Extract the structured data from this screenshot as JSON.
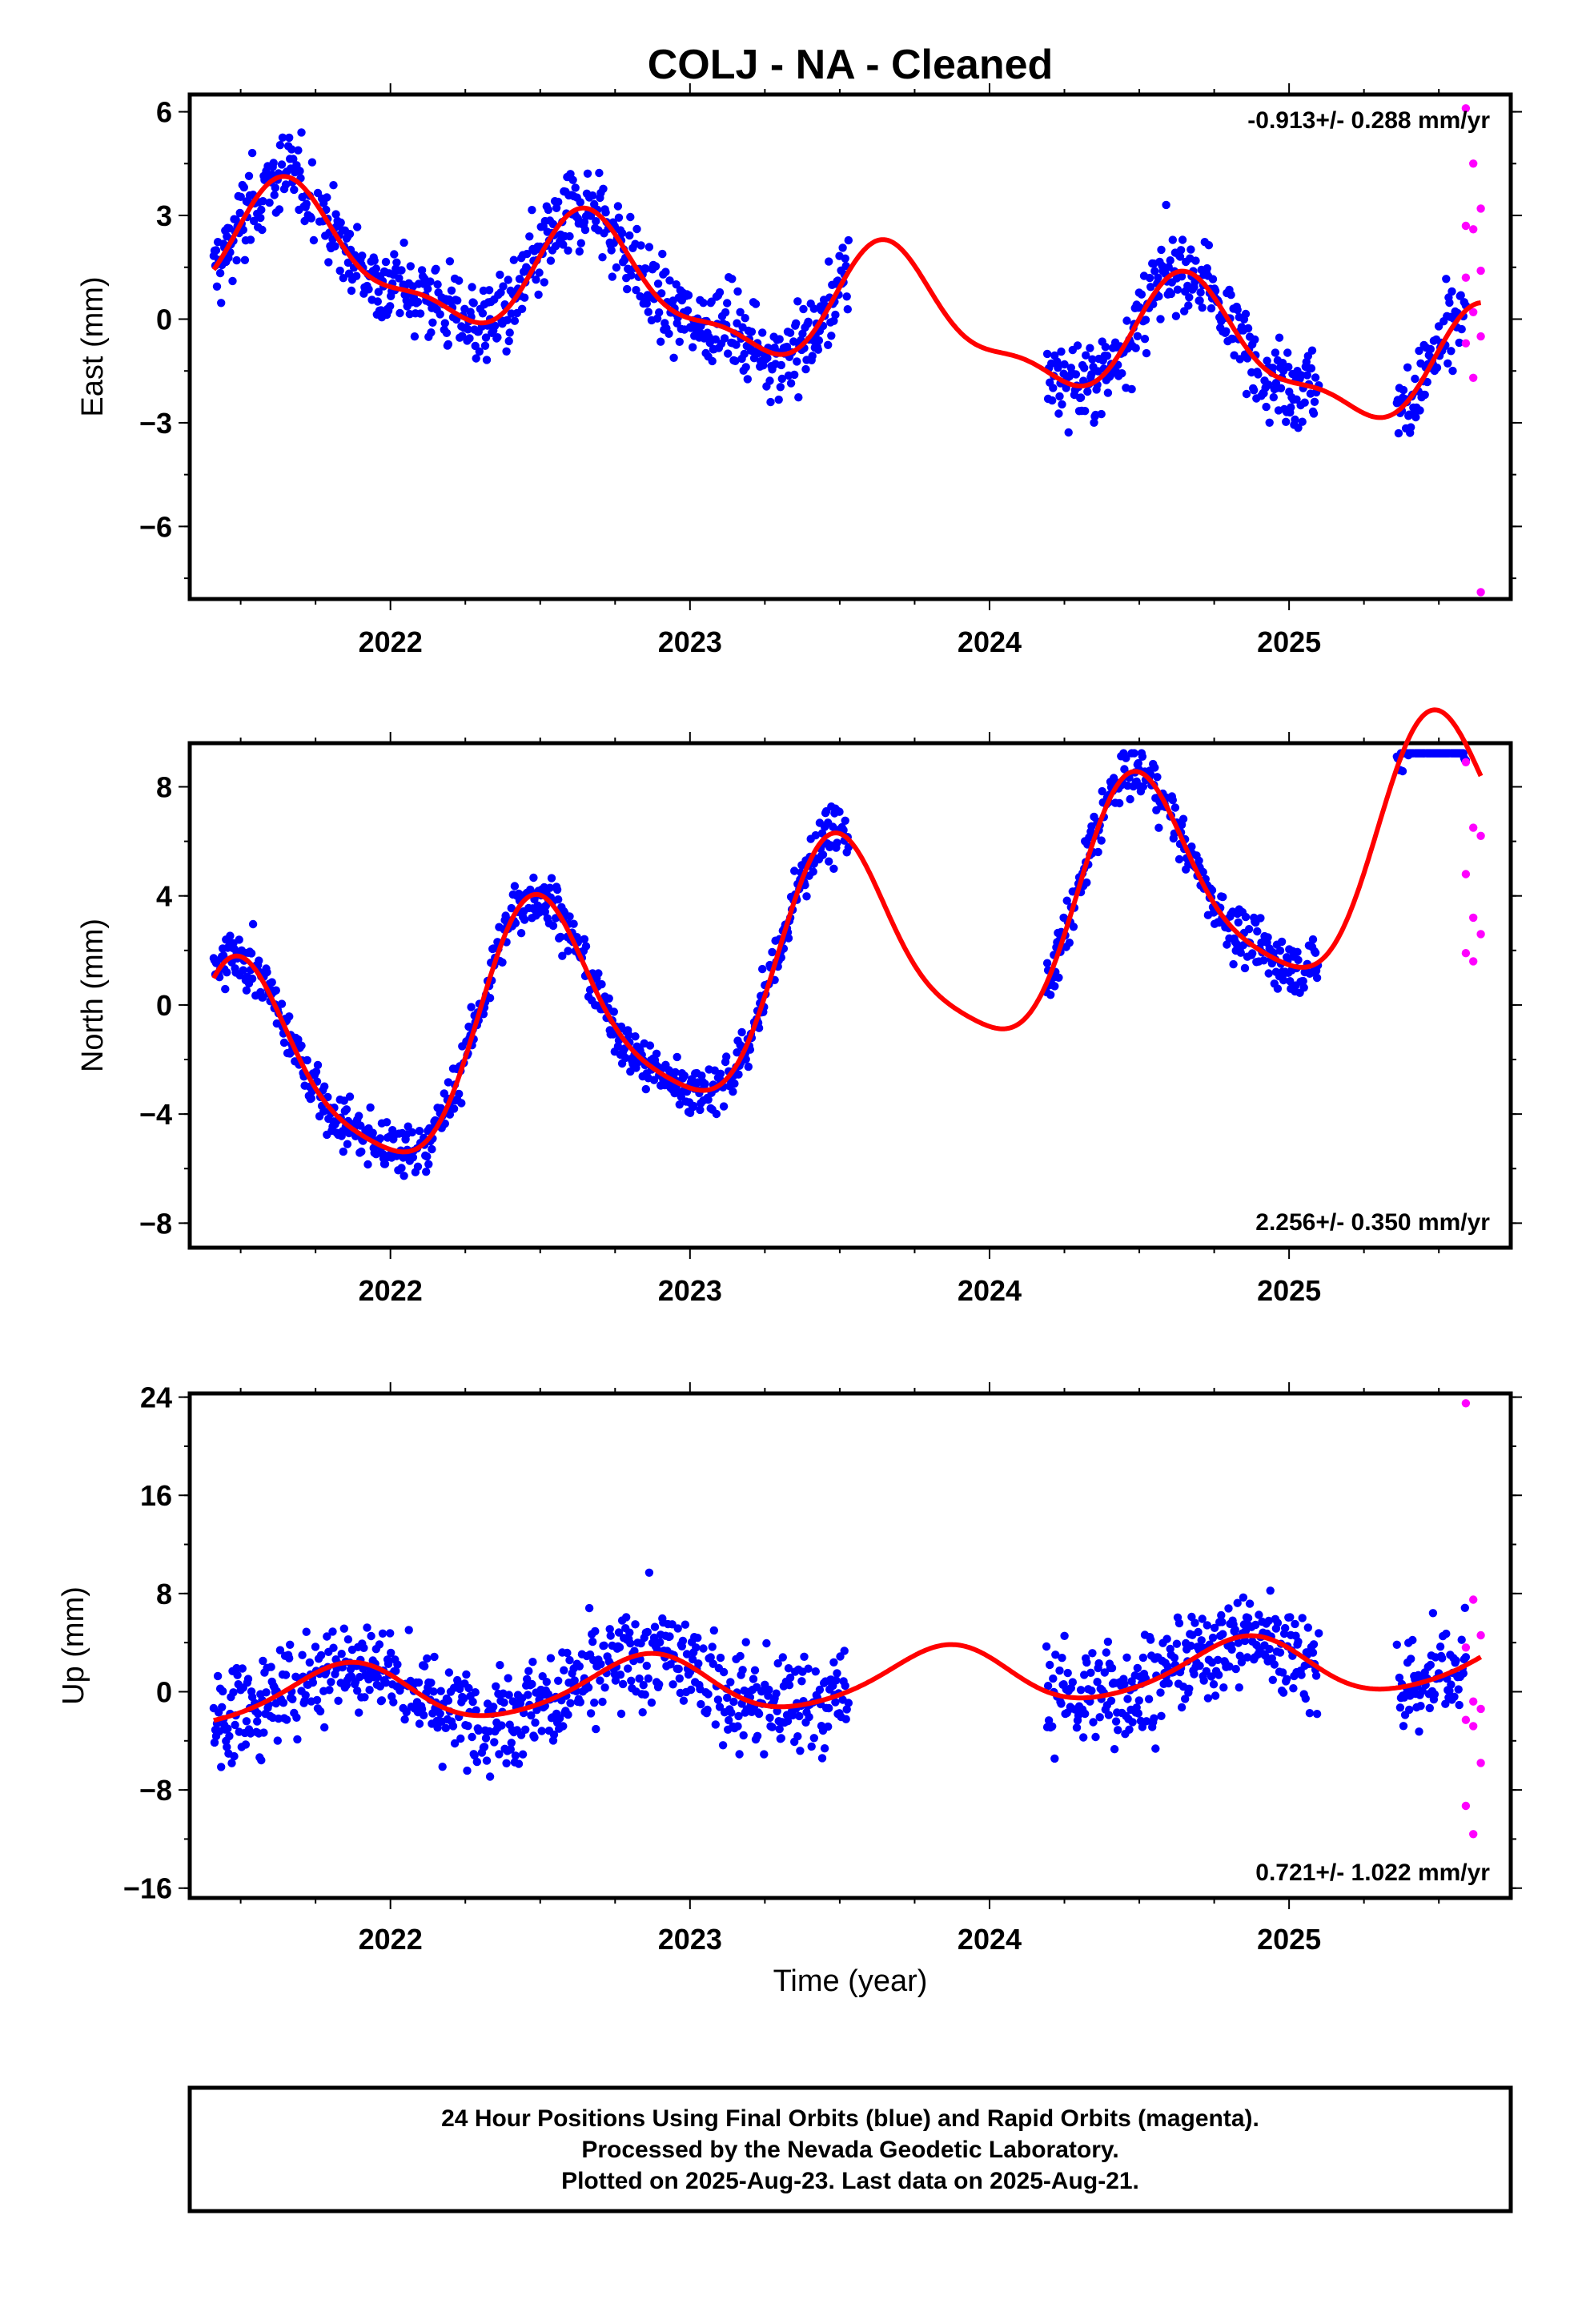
{
  "chart_data": {
    "title": "COLJ  - NA - Cleaned",
    "type": "scatter",
    "x_label": "Time (year)",
    "x_ticks": [
      "2022",
      "2023",
      "2024",
      "2025"
    ],
    "xlim": [
      2021.33,
      2025.74
    ],
    "colors": {
      "final": "#0000ff",
      "rapid": "#ff00ff",
      "fit": "#ff0000"
    },
    "panels": [
      {
        "ylabel": "East (mm)",
        "ylim": [
          -8.1,
          6.5
        ],
        "yticks": [
          "6",
          "3",
          "0",
          "-3",
          "-6"
        ],
        "rate_text": "-0.913+/- 0.288 mm/yr",
        "rate_position": "top-right",
        "trend": {
          "value_at_2021.4": 2.2,
          "rate": -0.913,
          "annual_amp": 1.6,
          "annual_peak": 2021.68,
          "semi_amp": 0.6,
          "semi_peak": 2021.63
        },
        "noise": 1.05,
        "rapid_values": [
          6.1,
          4.5,
          3.2,
          2.7,
          2.6,
          1.4,
          1.2,
          0.2,
          -0.5,
          -0.7,
          -1.7,
          -7.9
        ]
      },
      {
        "ylabel": "North (mm)",
        "ylim": [
          -8.9,
          9.6
        ],
        "yticks": [
          "8",
          "4",
          "0",
          "-4",
          "-8"
        ],
        "rate_text": "2.256+/- 0.350 mm/yr",
        "rate_position": "bottom-right",
        "trend": {
          "value_at_2021.4": -3.2,
          "rate": 2.256,
          "annual_amp": 4.1,
          "annual_peak": 2021.5,
          "semi_amp": 0.8,
          "semi_peak": 2021.45
        },
        "noise": 0.85,
        "rapid_values": [
          8.9,
          6.5,
          6.2,
          4.8,
          3.2,
          2.6,
          1.9,
          1.6
        ]
      },
      {
        "ylabel": "Up (mm)",
        "ylim": [
          -16.8,
          24.3
        ],
        "yticks": [
          "24",
          "16",
          "8",
          "0",
          "-8",
          "-16"
        ],
        "rate_text": "0.721+/- 1.022 mm/yr",
        "rate_position": "bottom-right",
        "trend": {
          "value_at_2021.4": -0.5,
          "rate": 0.721,
          "annual_amp": 2.3,
          "annual_peak": 2021.85,
          "semi_amp": 0.3,
          "semi_peak": 2021.9
        },
        "noise": 3.6,
        "rapid_values": [
          23.5,
          7.5,
          4.6,
          3.6,
          -0.8,
          -1.4,
          -2.3,
          -2.8,
          -5.8,
          -9.3,
          -11.6
        ]
      }
    ],
    "final_orbit_segments": [
      [
        2021.41,
        2023.53
      ],
      [
        2024.19,
        2025.1
      ],
      [
        2025.36,
        2025.59
      ]
    ],
    "rapid_orbit_range": [
      2025.59,
      2025.64
    ],
    "fit_range": [
      2021.41,
      2025.64
    ]
  },
  "footer": {
    "line1": "24 Hour Positions Using Final Orbits (blue) and Rapid Orbits (magenta).",
    "line2": "Processed by the Nevada Geodetic Laboratory.",
    "line3": "Plotted on 2025-Aug-23. Last data on 2025-Aug-21."
  }
}
